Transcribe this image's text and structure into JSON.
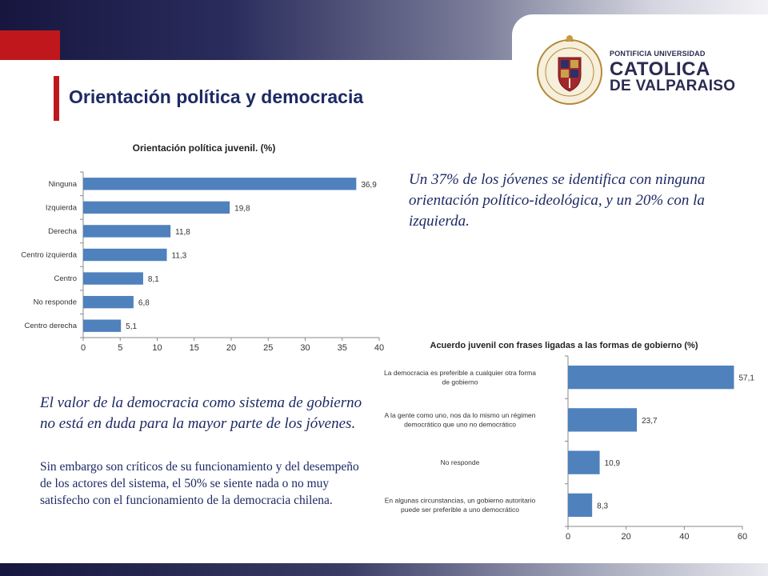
{
  "slide": {
    "title": "Orientación política y democracia",
    "accent_color": "#c0171c",
    "text_color": "#1d2a63",
    "bar_color": "#4f81bd"
  },
  "logo": {
    "line1": "PONTIFICIA UNIVERSIDAD",
    "line2": "CATOLICA",
    "line3": "DE VALPARAISO",
    "seal_text": "PONTIFICIA UNIVERSIDAD CATOLICA DE VALPARAISO"
  },
  "text": {
    "quote_top": "Un 37% de los jóvenes se identifica con ninguna orientación político-ideológica, y un 20% con la izquierda.",
    "quote_bottom": "El valor de la democracia como sistema de gobierno no está en duda para la mayor parte de los jóvenes.",
    "paragraph": "Sin embargo son críticos de su funcionamiento y del desempeño de los actores del sistema, el 50% se siente nada o no muy satisfecho con el funcionamiento de la democracia chilena."
  },
  "chart_data": [
    {
      "type": "bar",
      "orientation": "horizontal",
      "title": "Orientación política juvenil. (%)",
      "categories": [
        "Ninguna",
        "Izquierda",
        "Derecha",
        "Centro izquierda",
        "Centro",
        "No responde",
        "Centro derecha"
      ],
      "values": [
        36.9,
        19.8,
        11.8,
        11.3,
        8.1,
        6.8,
        5.1
      ],
      "value_labels": [
        "36,9",
        "19,8",
        "11,8",
        "11,3",
        "8,1",
        "6,8",
        "5,1"
      ],
      "xlim": [
        0,
        40
      ],
      "xticks": [
        "0",
        "5",
        "10",
        "15",
        "20",
        "25",
        "30",
        "35",
        "40"
      ],
      "grid": false,
      "legend": "none"
    },
    {
      "type": "bar",
      "orientation": "horizontal",
      "title": "Acuerdo juvenil con frases ligadas a las formas de gobierno (%)",
      "categories": [
        [
          "La democracia es preferible a cualquier otra forma",
          "de gobierno"
        ],
        [
          "A la gente como uno, nos da lo mismo un régimen",
          "democrático que uno no democrático"
        ],
        [
          "No responde"
        ],
        [
          "En algunas circunstancias, un gobierno autoritario",
          "puede ser preferible a uno democrático"
        ]
      ],
      "values": [
        57.1,
        23.7,
        10.9,
        8.3
      ],
      "value_labels": [
        "57,1",
        "23,7",
        "10,9",
        "8,3"
      ],
      "xlim": [
        0,
        60
      ],
      "xticks": [
        "0",
        "20",
        "40",
        "60"
      ],
      "grid": false,
      "legend": "none"
    }
  ]
}
